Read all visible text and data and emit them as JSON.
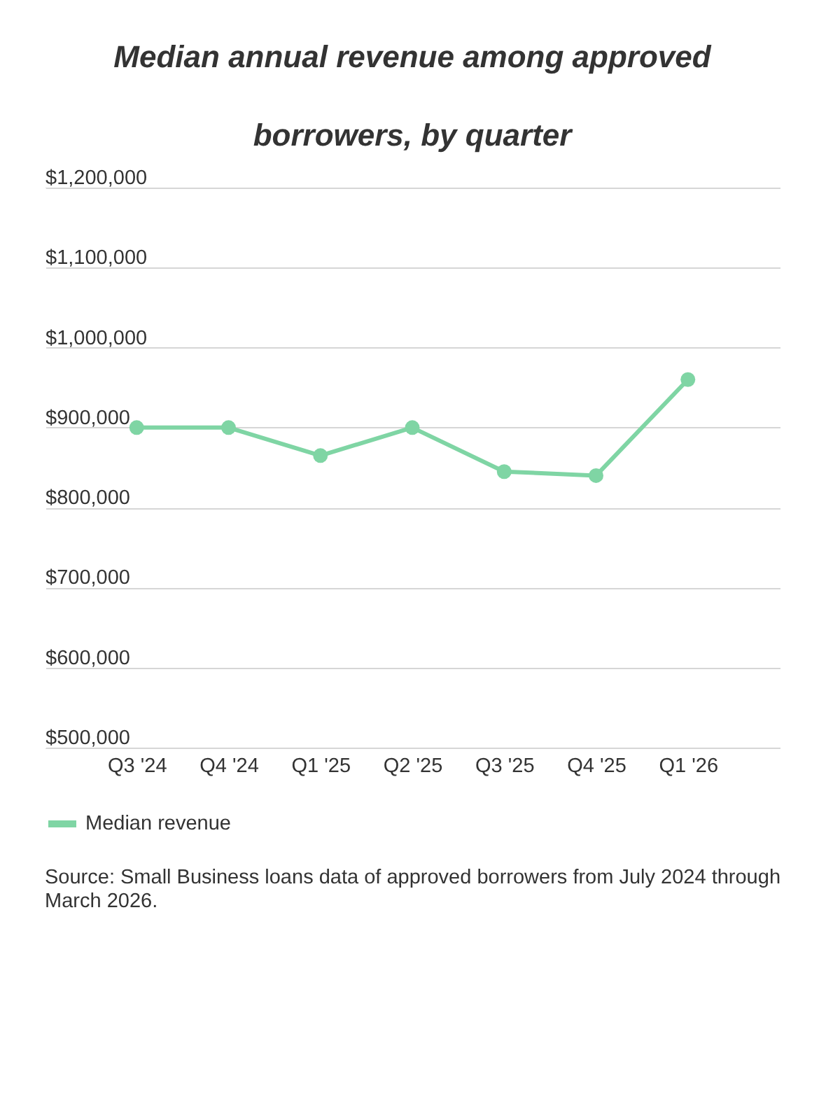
{
  "chart_data": {
    "type": "line",
    "title": "Median annual revenue among approved borrowers, by quarter",
    "categories": [
      "Q3 '24",
      "Q4 '24",
      "Q1 '25",
      "Q2 '25",
      "Q3 '25",
      "Q4 '25",
      "Q1 '26"
    ],
    "series": [
      {
        "name": "Median revenue",
        "color": "#7fd5a4",
        "values": [
          900000,
          900000,
          865000,
          900000,
          845000,
          840000,
          960000
        ]
      }
    ],
    "ylim": [
      500000,
      1200000
    ],
    "yticks": [
      {
        "value": 500000,
        "label": "$500,000"
      },
      {
        "value": 600000,
        "label": "$600,000"
      },
      {
        "value": 700000,
        "label": "$700,000"
      },
      {
        "value": 800000,
        "label": "$800,000"
      },
      {
        "value": 900000,
        "label": "$900,000"
      },
      {
        "value": 1000000,
        "label": "$1,000,000"
      },
      {
        "value": 1100000,
        "label": "$1,100,000"
      },
      {
        "value": 1200000,
        "label": "$1,200,000"
      }
    ],
    "grid": "y",
    "legend": "bottom",
    "marker": "circle",
    "line_style": "solid",
    "annotations": [
      "Source: Small Business loans data of approved borrowers from July 2024 through March 2026."
    ]
  }
}
